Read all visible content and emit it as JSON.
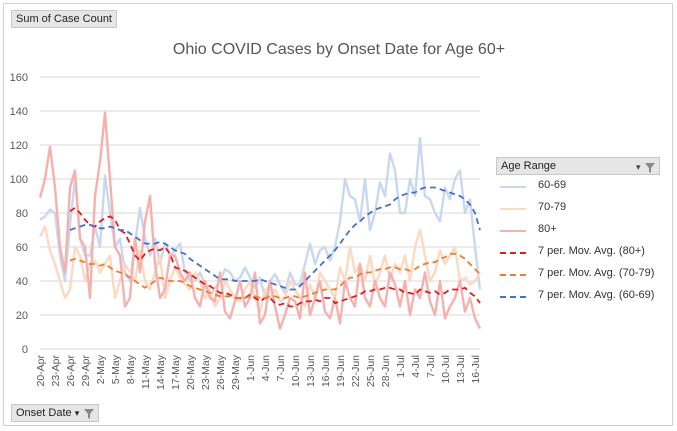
{
  "value_field_button": {
    "label": "Sum of Case Count"
  },
  "axis_field_button": {
    "label": "Onset Date"
  },
  "legend": {
    "title": "Age Range",
    "items": [
      {
        "label": "60-69",
        "color": "#c9d8ef",
        "style": "solid"
      },
      {
        "label": "70-79",
        "color": "#fbd9c3",
        "style": "solid"
      },
      {
        "label": "80+",
        "color": "#f5b1ad",
        "style": "solid"
      },
      {
        "label": "7 per. Mov. Avg. (80+)",
        "color": "#e41a1c",
        "style": "dashed"
      },
      {
        "label": "7 per. Mov. Avg. (70-79)",
        "color": "#ed7d31",
        "style": "dashed"
      },
      {
        "label": "7 per. Mov. Avg. (60-69)",
        "color": "#4472c4",
        "style": "dashed"
      }
    ]
  },
  "chart_data": {
    "type": "line",
    "title": "Ohio COVID Cases by Onset Date for Age 60+",
    "xlabel": "",
    "ylabel": "",
    "ylim": [
      0,
      160
    ],
    "yticks": [
      0,
      20,
      40,
      60,
      80,
      100,
      120,
      140,
      160
    ],
    "x_tick_labels": [
      "20-Apr",
      "23-Apr",
      "26-Apr",
      "29-Apr",
      "2-May",
      "5-May",
      "8-May",
      "11-May",
      "14-May",
      "17-May",
      "20-May",
      "23-May",
      "26-May",
      "29-May",
      "1-Jun",
      "4-Jun",
      "7-Jun",
      "10-Jun",
      "13-Jun",
      "16-Jun",
      "19-Jun",
      "22-Jun",
      "25-Jun",
      "28-Jun",
      "1-Jul",
      "4-Jul",
      "7-Jul",
      "10-Jul",
      "13-Jul",
      "16-Jul"
    ],
    "start_date": "20-Apr",
    "end_date": "16-Jul",
    "grid": true,
    "legend_position": "right",
    "series": [
      {
        "name": "60-69",
        "color": "#c9d8ef",
        "dashed": false,
        "values": [
          76,
          78,
          82,
          80,
          55,
          40,
          73,
          100,
          65,
          55,
          55,
          72,
          60,
          102,
          80,
          60,
          65,
          45,
          40,
          62,
          83,
          65,
          55,
          65,
          50,
          62,
          55,
          58,
          62,
          45,
          40,
          40,
          45,
          38,
          30,
          36,
          40,
          47,
          45,
          40,
          42,
          48,
          42,
          36,
          42,
          30,
          40,
          44,
          38,
          33,
          45,
          38,
          38,
          50,
          62,
          50,
          58,
          60,
          52,
          60,
          75,
          100,
          90,
          88,
          75,
          100,
          70,
          80,
          98,
          90,
          115,
          105,
          80,
          80,
          100,
          90,
          124,
          90,
          88,
          80,
          75,
          95,
          88,
          100,
          105,
          80,
          88,
          60,
          35
        ]
      },
      {
        "name": "70-79",
        "color": "#fbd9c3",
        "dashed": false,
        "values": [
          66,
          72,
          58,
          50,
          40,
          30,
          35,
          60,
          55,
          40,
          50,
          52,
          45,
          50,
          55,
          30,
          40,
          50,
          45,
          40,
          58,
          40,
          35,
          45,
          55,
          30,
          40,
          48,
          42,
          38,
          35,
          45,
          40,
          30,
          35,
          25,
          30,
          40,
          35,
          30,
          28,
          35,
          40,
          30,
          22,
          35,
          30,
          35,
          28,
          30,
          40,
          35,
          30,
          25,
          38,
          30,
          45,
          40,
          35,
          30,
          48,
          40,
          60,
          45,
          50,
          40,
          55,
          38,
          45,
          55,
          40,
          50,
          45,
          55,
          40,
          60,
          70,
          55,
          40,
          45,
          58,
          50,
          55,
          60,
          40,
          42,
          38,
          40,
          45
        ]
      },
      {
        "name": "80+",
        "color": "#f5b1ad",
        "dashed": false,
        "values": [
          89,
          100,
          119,
          95,
          60,
          45,
          95,
          105,
          65,
          60,
          30,
          90,
          110,
          139,
          100,
          60,
          55,
          25,
          30,
          65,
          45,
          75,
          90,
          50,
          30,
          35,
          55,
          55,
          45,
          40,
          45,
          30,
          25,
          40,
          30,
          28,
          45,
          22,
          18,
          28,
          40,
          25,
          30,
          45,
          15,
          20,
          40,
          25,
          12,
          20,
          30,
          28,
          18,
          45,
          20,
          30,
          40,
          22,
          18,
          30,
          15,
          40,
          30,
          25,
          50,
          30,
          25,
          40,
          30,
          25,
          45,
          38,
          25,
          40,
          20,
          35,
          30,
          45,
          28,
          20,
          40,
          18,
          25,
          30,
          40,
          22,
          30,
          18,
          12
        ]
      },
      {
        "name": "7 per. Mov. Avg. (80+)",
        "color": "#e41a1c",
        "dashed": true,
        "values": [
          null,
          null,
          null,
          null,
          null,
          null,
          81,
          83,
          80,
          76,
          73,
          72,
          75,
          77,
          78,
          76,
          70,
          68,
          62,
          55,
          52,
          56,
          58,
          59,
          58,
          60,
          56,
          48,
          47,
          46,
          44,
          42,
          40,
          38,
          37,
          35,
          33,
          33,
          32,
          30,
          30,
          30,
          32,
          30,
          28,
          30,
          30,
          27,
          26,
          27,
          25,
          25,
          27,
          28,
          28,
          29,
          28,
          30,
          30,
          27,
          28,
          29,
          30,
          31,
          32,
          34,
          34,
          35,
          35,
          36,
          36,
          35,
          35,
          33,
          33,
          32,
          35,
          34,
          33,
          34,
          32,
          33,
          35,
          35,
          35,
          36,
          33,
          31,
          27
        ]
      },
      {
        "name": "7 per. Mov. Avg. (70-79)",
        "color": "#ed7d31",
        "dashed": true,
        "values": [
          null,
          null,
          null,
          null,
          null,
          null,
          52,
          53,
          52,
          51,
          50,
          50,
          49,
          50,
          48,
          46,
          45,
          44,
          42,
          40,
          38,
          36,
          38,
          40,
          42,
          41,
          40,
          40,
          40,
          39,
          37,
          36,
          35,
          34,
          33,
          32,
          31,
          31,
          31,
          30,
          30,
          30,
          31,
          31,
          30,
          30,
          31,
          31,
          30,
          30,
          31,
          31,
          30,
          31,
          32,
          33,
          34,
          35,
          35,
          35,
          37,
          40,
          42,
          42,
          44,
          45,
          45,
          46,
          47,
          47,
          48,
          48,
          47,
          47,
          46,
          47,
          49,
          50,
          51,
          51,
          53,
          54,
          56,
          56,
          55,
          53,
          50,
          47,
          44
        ]
      },
      {
        "name": "7 per. Mov. Avg. (60-69)",
        "color": "#4472c4",
        "dashed": true,
        "values": [
          null,
          null,
          null,
          null,
          null,
          null,
          70,
          71,
          72,
          73,
          73,
          72,
          71,
          71,
          72,
          71,
          70,
          70,
          68,
          66,
          64,
          62,
          62,
          62,
          63,
          62,
          60,
          58,
          57,
          56,
          53,
          51,
          49,
          47,
          45,
          43,
          41,
          41,
          41,
          40,
          40,
          40,
          40,
          40,
          41,
          40,
          39,
          38,
          37,
          36,
          35,
          35,
          37,
          40,
          43,
          46,
          49,
          52,
          55,
          58,
          62,
          66,
          70,
          73,
          75,
          78,
          80,
          82,
          83,
          84,
          85,
          88,
          90,
          91,
          92,
          92,
          94,
          95,
          95,
          95,
          94,
          93,
          92,
          91,
          90,
          88,
          85,
          80,
          70
        ]
      }
    ]
  }
}
